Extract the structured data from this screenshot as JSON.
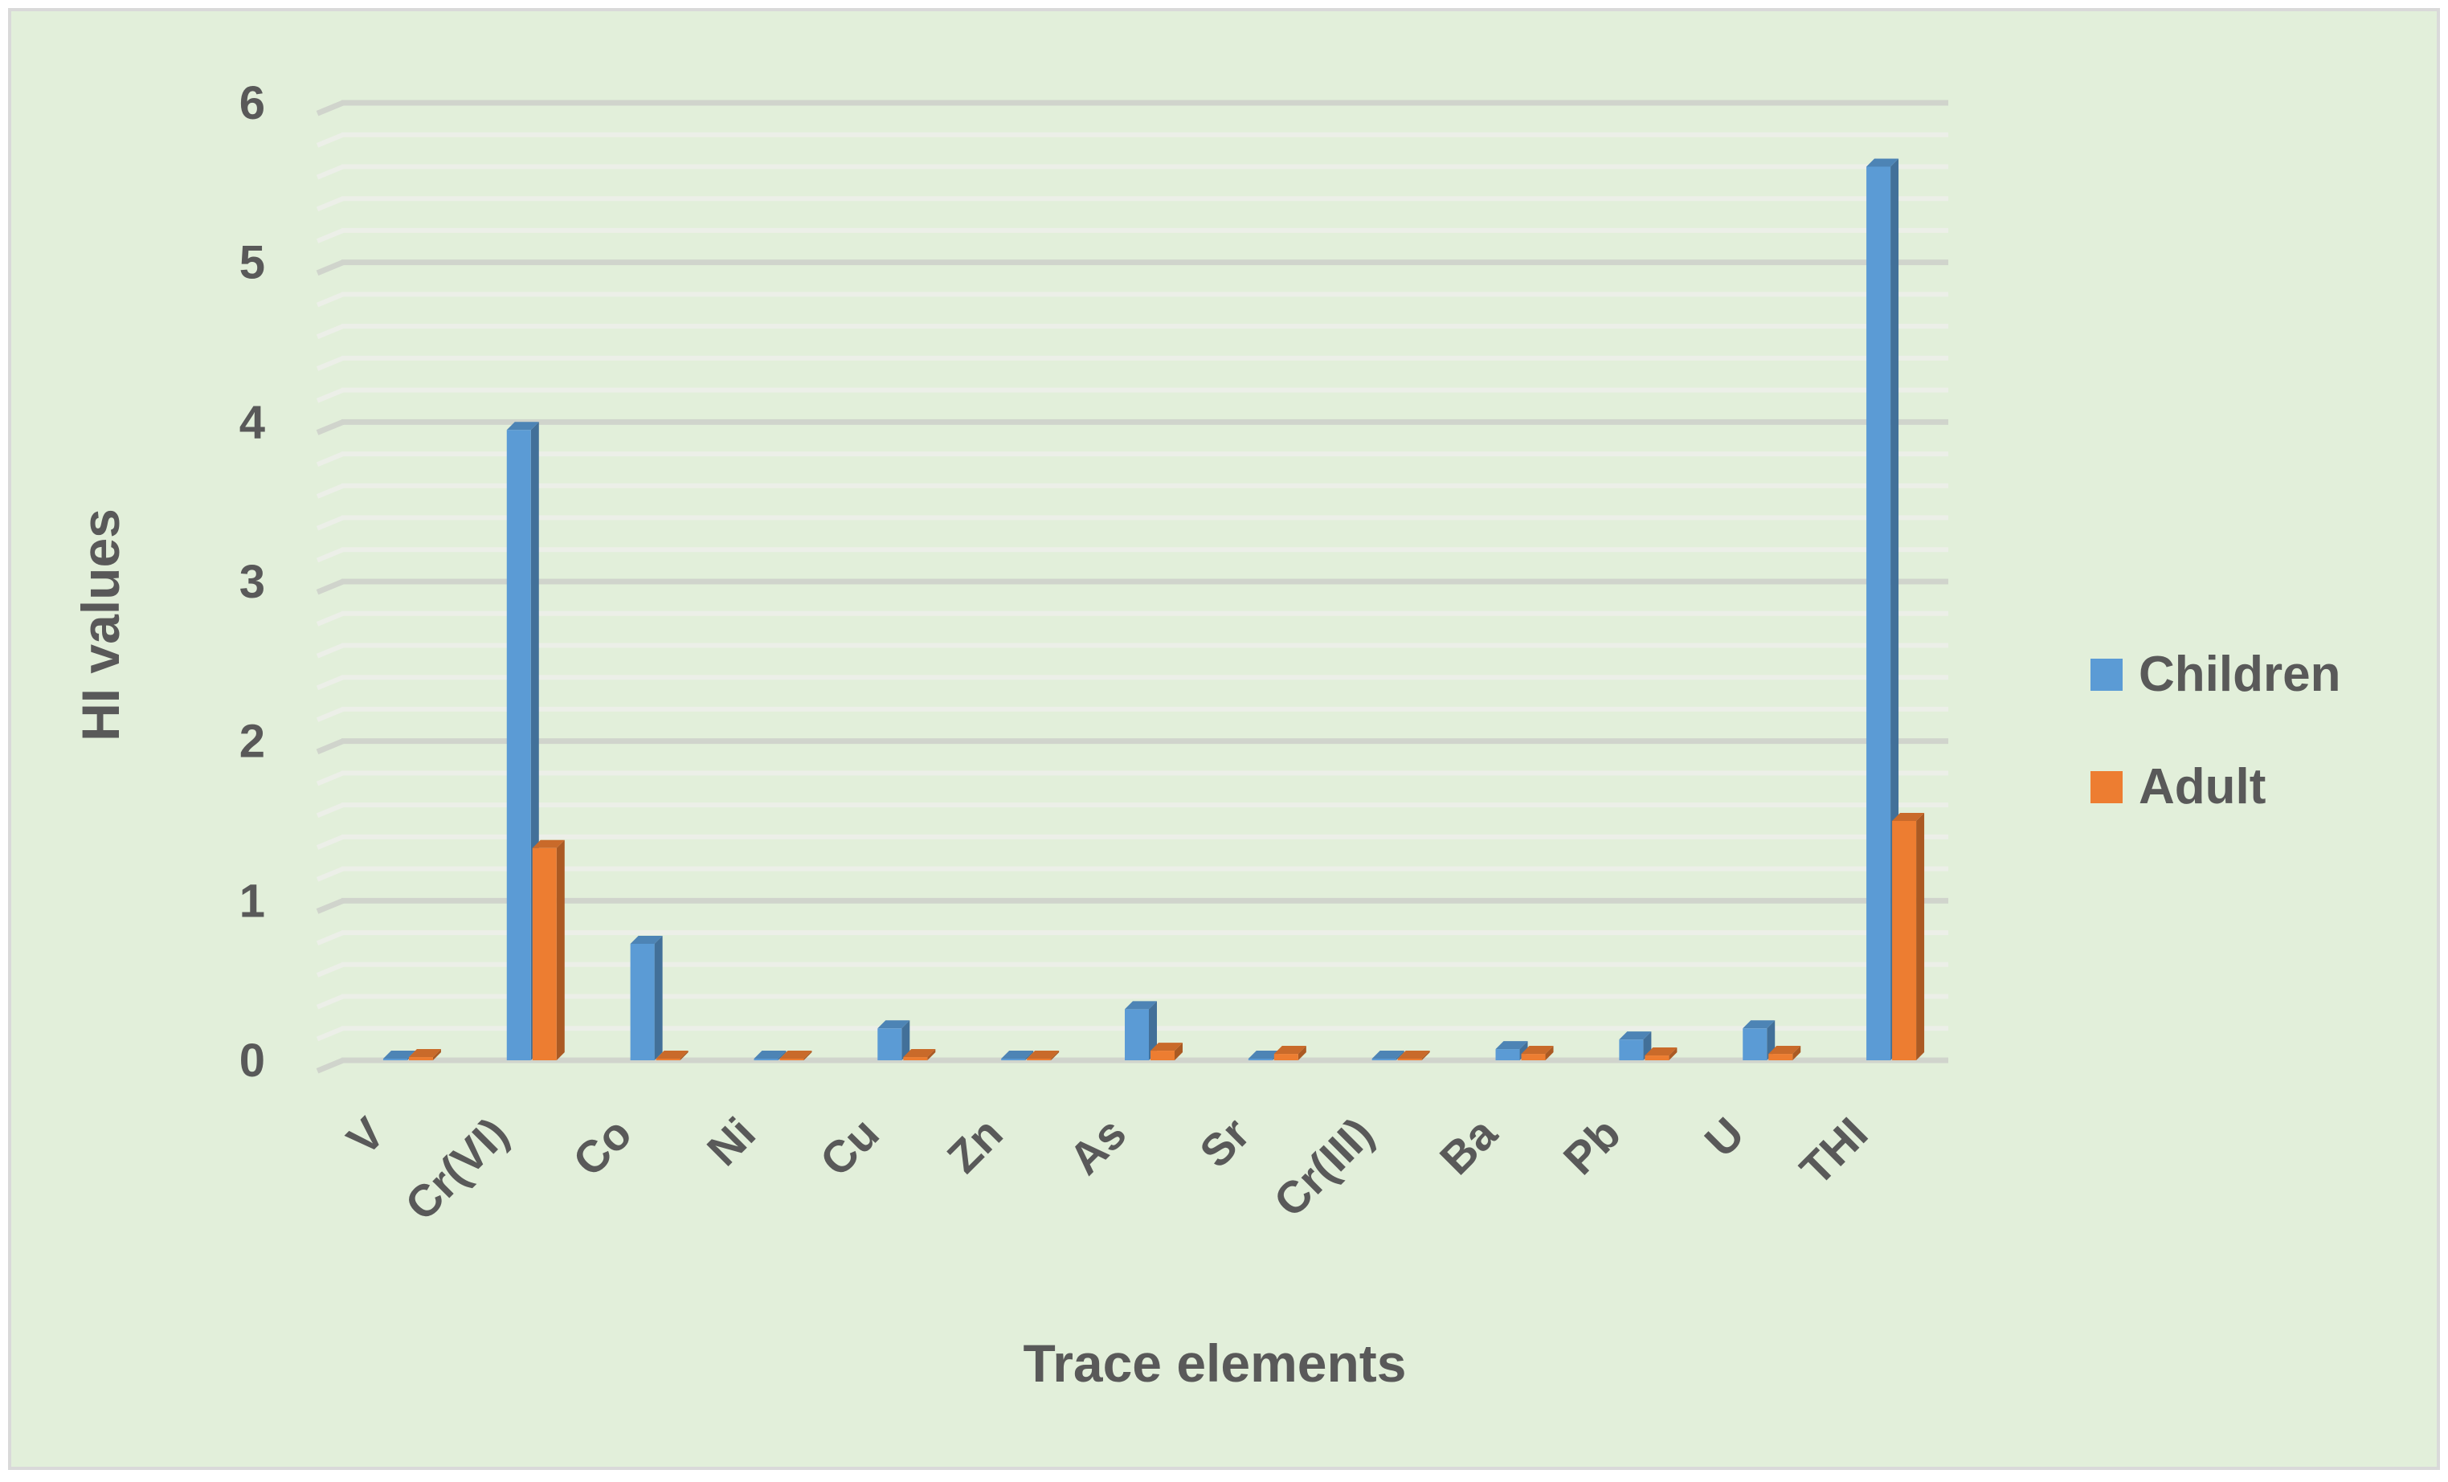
{
  "chart_data": {
    "type": "bar",
    "title": "",
    "xlabel": "Trace elements",
    "ylabel": "HI values",
    "ylim": [
      0,
      6
    ],
    "yticks": [
      "0",
      "1",
      "2",
      "3",
      "4",
      "5",
      "6"
    ],
    "ytick_values": [
      0,
      1,
      2,
      3,
      4,
      5,
      6
    ],
    "minor_grid_step": 0.2,
    "grid": true,
    "legend_position": "right",
    "categories": [
      "V",
      "Cr(VI)",
      "Co",
      "Ni",
      "Cu",
      "Zn",
      "As",
      "Sr",
      "Cr(III)",
      "Ba",
      "Pb",
      "U",
      "THI"
    ],
    "series": [
      {
        "name": "Children",
        "values": [
          0.0,
          3.95,
          0.73,
          0.01,
          0.2,
          0.01,
          0.32,
          0.01,
          0.01,
          0.07,
          0.13,
          0.2,
          5.6
        ],
        "color": "#5B9BD5"
      },
      {
        "name": "Adult",
        "values": [
          0.02,
          1.33,
          0.01,
          0.01,
          0.02,
          0.01,
          0.06,
          0.04,
          0.01,
          0.04,
          0.03,
          0.04,
          1.5
        ],
        "color": "#ED7D31"
      }
    ],
    "background_color": "#E2EFDA",
    "border_color": "#D9D9D9"
  }
}
